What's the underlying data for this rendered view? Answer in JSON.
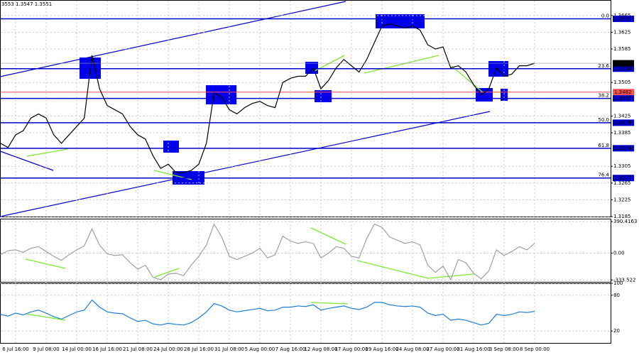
{
  "header": "3553 1.3547 1.3551",
  "chart_data": [
    {
      "type": "line",
      "panel": "price",
      "categories": [
        null,
        null,
        "6 Jul 16:00",
        null,
        null,
        null,
        "9 Jul 08:00",
        null,
        null,
        null,
        "14 Jul 00:00",
        null,
        null,
        null,
        "16 Jul 16:00",
        null,
        null,
        null,
        "21 Jul 08:00",
        null,
        null,
        null,
        "24 Jul 00:00",
        null,
        null,
        null,
        "28 Jul 16:00",
        null,
        null,
        null,
        "31 Jul 08:00",
        null,
        null,
        null,
        "5 Aug 00:00",
        null,
        null,
        null,
        "7 Aug 16:00",
        null,
        null,
        null,
        "12 Aug 08:00",
        null,
        null,
        null,
        "17 Aug 00:00",
        null,
        null,
        null,
        "19 Aug 16:00",
        null,
        null,
        null,
        "24 Aug 08:00",
        null,
        null,
        null,
        "27 Aug 00:00",
        null,
        null,
        null,
        "31 Aug 16:00",
        null,
        null,
        null,
        "3 Sep 08:00",
        null,
        null,
        null,
        "8 Sep 00:00"
      ],
      "values": [
        1.336,
        1.335,
        1.338,
        1.339,
        1.342,
        1.343,
        1.342,
        1.338,
        1.336,
        1.338,
        1.34,
        1.342,
        1.357,
        1.349,
        1.345,
        1.344,
        1.343,
        1.34,
        1.338,
        1.337,
        1.333,
        1.33,
        1.331,
        1.329,
        1.329,
        1.3295,
        1.331,
        1.336,
        1.348,
        1.347,
        1.344,
        1.343,
        1.3445,
        1.3455,
        1.346,
        1.345,
        1.3445,
        1.3505,
        1.3515,
        1.352,
        1.352,
        1.354,
        1.349,
        1.351,
        1.354,
        1.356,
        1.3545,
        1.353,
        1.356,
        1.36,
        1.364,
        1.3645,
        1.364,
        1.3635,
        1.364,
        1.363,
        1.3595,
        1.3585,
        1.359,
        1.354,
        1.3545,
        1.353,
        1.35,
        1.3475,
        1.349,
        1.354,
        1.352,
        1.3525,
        1.3545,
        1.3545,
        1.3551
      ],
      "color": "#000000",
      "ylim": [
        1.3185,
        1.3702
      ],
      "yticks": [
        1.3665,
        1.3625,
        1.3585,
        1.3505,
        1.3425,
        1.3385,
        1.3305,
        1.3265,
        1.3225,
        1.3185
      ],
      "grid": true,
      "levels": [
        {
          "value": 1.3657,
          "label": "1.3657",
          "fib": "0.0",
          "color": "#0000cc"
        },
        {
          "value": 1.3538,
          "label": "1.3538",
          "fib": "23.6",
          "color": "#0000cc"
        },
        {
          "value": 1.3482,
          "label": "1.3482",
          "color": "#ff5050"
        },
        {
          "value": 1.3467,
          "label": "1.3467",
          "fib": "38.2",
          "color": "#0000cc"
        },
        {
          "value": 1.3409,
          "label": "1.3409",
          "fib": "50.0",
          "color": "#0000cc"
        },
        {
          "value": 1.3348,
          "label": "1.3348",
          "fib": "61.8",
          "color": "#0000cc"
        },
        {
          "value": 1.3277,
          "label": "1.3277",
          "fib": "76.4",
          "color": "#0000cc"
        }
      ],
      "last": {
        "value": 1.3551,
        "label": "1.3551"
      }
    },
    {
      "type": "line",
      "panel": "cci",
      "values": [
        -20,
        30,
        40,
        10,
        60,
        80,
        20,
        -40,
        -90,
        -20,
        40,
        90,
        300,
        100,
        -10,
        -30,
        -20,
        -120,
        -200,
        -150,
        -300,
        -330,
        -260,
        -250,
        -280,
        -150,
        -40,
        100,
        360,
        200,
        -40,
        -80,
        -40,
        0,
        60,
        -60,
        -20,
        210,
        150,
        120,
        140,
        120,
        -60,
        0,
        80,
        60,
        -40,
        -60,
        180,
        360,
        320,
        200,
        160,
        120,
        140,
        100,
        -150,
        -240,
        -160,
        -330,
        -80,
        -120,
        -250,
        -320,
        -220,
        40,
        -30,
        20,
        80,
        40,
        120
      ],
      "color": "#a0a0a0",
      "ylim": [
        -357,
        427
      ],
      "yticks": [
        390.4163,
        {
          "value": 0,
          "label": "0.00"
        },
        -333.522
      ]
    },
    {
      "type": "line",
      "panel": "rsi",
      "values": [
        48,
        45,
        50,
        47,
        52,
        55,
        50,
        44,
        40,
        46,
        52,
        55,
        72,
        60,
        52,
        50,
        49,
        42,
        36,
        38,
        32,
        30,
        33,
        31,
        30,
        34,
        42,
        52,
        66,
        62,
        55,
        52,
        54,
        56,
        58,
        54,
        55,
        60,
        60,
        62,
        61,
        64,
        55,
        58,
        60,
        62,
        58,
        56,
        60,
        68,
        68,
        64,
        62,
        61,
        62,
        60,
        50,
        46,
        48,
        38,
        40,
        38,
        34,
        30,
        33,
        48,
        46,
        48,
        52,
        51,
        53
      ],
      "color": "#1e7fd6",
      "ylim": [
        0,
        100
      ],
      "yticks": [
        100,
        80,
        20
      ]
    }
  ]
}
